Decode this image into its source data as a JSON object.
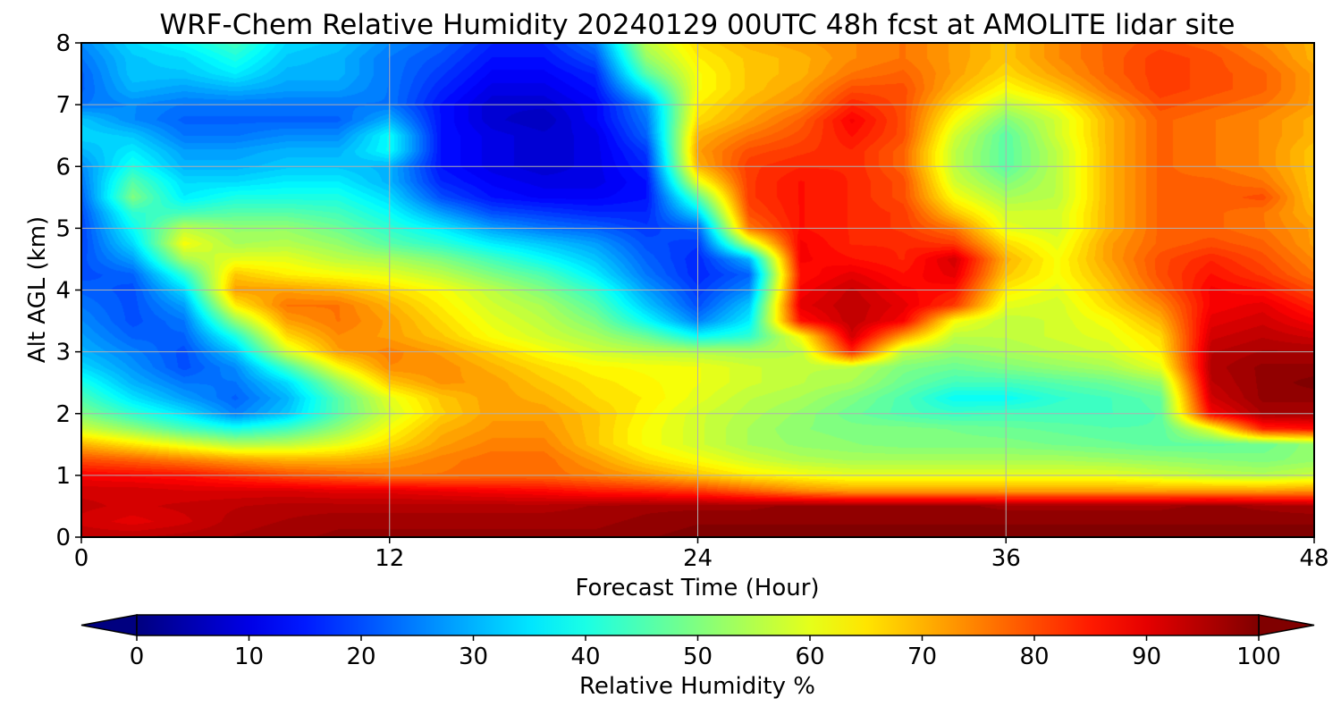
{
  "chart_data": {
    "type": "heatmap",
    "subtype": "filled-contour",
    "title": "WRF-Chem Relative Humidity 20240129 00UTC 48h fcst at AMOLITE lidar site",
    "xlabel": "Forecast Time (Hour)",
    "ylabel": "Alt AGL (km)",
    "xlim": [
      0,
      48
    ],
    "ylim": [
      0,
      8
    ],
    "xticks": [
      0,
      12,
      24,
      36,
      48
    ],
    "yticks": [
      0,
      1,
      2,
      3,
      4,
      5,
      6,
      7,
      8
    ],
    "grid": true,
    "colormap": "jet",
    "colorbar": {
      "label": "Relative Humidity %",
      "range": [
        0,
        100
      ],
      "ticks": [
        0,
        10,
        20,
        30,
        40,
        50,
        60,
        70,
        80,
        90,
        100
      ],
      "extend": "both",
      "orientation": "horizontal",
      "placement": "bottom"
    },
    "x": [
      0,
      2,
      4,
      6,
      8,
      10,
      12,
      14,
      16,
      18,
      20,
      22,
      24,
      26,
      28,
      30,
      32,
      34,
      36,
      38,
      40,
      42,
      44,
      46,
      48
    ],
    "y": [
      0,
      0.25,
      0.5,
      0.75,
      1,
      1.25,
      1.5,
      1.75,
      2,
      2.25,
      2.5,
      2.75,
      3,
      3.25,
      3.5,
      3.75,
      4,
      4.25,
      4.5,
      4.75,
      5,
      5.25,
      5.5,
      5.75,
      6,
      6.25,
      6.5,
      6.75,
      7,
      7.25,
      7.5,
      7.75,
      8
    ],
    "values": [
      [
        94,
        94,
        95,
        96,
        97,
        98,
        98,
        98,
        98,
        98,
        98,
        99,
        100,
        100,
        100,
        100,
        100,
        100,
        100,
        100,
        100,
        100,
        100,
        100,
        100
      ],
      [
        92,
        90,
        92,
        95,
        96,
        97,
        97,
        97,
        97,
        97,
        97,
        98,
        99,
        99,
        99,
        99,
        99,
        99,
        99,
        99,
        99,
        99,
        99,
        99,
        99
      ],
      [
        93,
        92,
        93,
        94,
        95,
        95,
        95,
        95,
        95,
        95,
        96,
        97,
        97,
        97,
        98,
        98,
        98,
        98,
        97,
        97,
        97,
        97,
        98,
        97,
        96
      ],
      [
        92,
        92,
        91,
        91,
        91,
        90,
        90,
        89,
        88,
        87,
        85,
        84,
        82,
        78,
        74,
        72,
        72,
        72,
        72,
        72,
        72,
        72,
        72,
        72,
        73
      ],
      [
        88,
        87,
        86,
        83,
        80,
        78,
        76,
        76,
        77,
        77,
        75,
        72,
        68,
        64,
        62,
        60,
        60,
        60,
        60,
        60,
        60,
        58,
        56,
        55,
        57
      ],
      [
        80,
        78,
        75,
        72,
        70,
        70,
        72,
        75,
        77,
        77,
        72,
        66,
        62,
        58,
        55,
        54,
        54,
        54,
        54,
        54,
        53,
        52,
        51,
        50,
        52
      ],
      [
        70,
        65,
        60,
        55,
        56,
        60,
        66,
        72,
        75,
        75,
        68,
        62,
        58,
        54,
        52,
        51,
        50,
        50,
        50,
        49,
        48,
        47,
        47,
        48,
        52
      ],
      [
        58,
        52,
        45,
        40,
        44,
        52,
        62,
        70,
        73,
        73,
        68,
        62,
        58,
        54,
        51,
        50,
        50,
        49,
        48,
        47,
        46,
        46,
        60,
        84,
        86
      ],
      [
        50,
        42,
        35,
        25,
        32,
        46,
        58,
        67,
        72,
        72,
        68,
        63,
        58,
        55,
        52,
        48,
        45,
        43,
        44,
        44,
        44,
        46,
        88,
        96,
        96
      ],
      [
        45,
        35,
        28,
        22,
        30,
        46,
        60,
        68,
        72,
        70,
        66,
        64,
        60,
        56,
        54,
        50,
        45,
        38,
        38,
        42,
        44,
        47,
        92,
        98,
        98
      ],
      [
        40,
        30,
        24,
        24,
        34,
        52,
        68,
        73,
        72,
        68,
        65,
        63,
        61,
        58,
        56,
        54,
        48,
        44,
        44,
        46,
        48,
        52,
        94,
        98,
        100
      ],
      [
        34,
        27,
        20,
        26,
        44,
        62,
        74,
        74,
        70,
        66,
        63,
        62,
        61,
        58,
        56,
        56,
        50,
        48,
        50,
        52,
        54,
        60,
        95,
        98,
        98
      ],
      [
        30,
        25,
        20,
        32,
        58,
        72,
        75,
        72,
        67,
        62,
        58,
        56,
        55,
        54,
        56,
        84,
        56,
        52,
        54,
        56,
        58,
        64,
        94,
        96,
        96
      ],
      [
        28,
        22,
        22,
        40,
        66,
        74,
        72,
        68,
        62,
        58,
        54,
        48,
        38,
        42,
        62,
        92,
        72,
        56,
        56,
        58,
        60,
        66,
        92,
        94,
        92
      ],
      [
        26,
        20,
        24,
        52,
        72,
        76,
        72,
        66,
        60,
        56,
        50,
        38,
        25,
        36,
        86,
        94,
        88,
        62,
        56,
        58,
        62,
        70,
        90,
        92,
        88
      ],
      [
        24,
        20,
        28,
        64,
        76,
        76,
        70,
        64,
        58,
        54,
        46,
        32,
        20,
        32,
        90,
        94,
        90,
        82,
        60,
        58,
        66,
        74,
        88,
        90,
        84
      ],
      [
        22,
        20,
        34,
        72,
        72,
        70,
        66,
        62,
        56,
        50,
        42,
        28,
        18,
        26,
        88,
        93,
        88,
        86,
        64,
        60,
        68,
        78,
        88,
        86,
        80
      ],
      [
        20,
        22,
        42,
        68,
        64,
        62,
        60,
        56,
        50,
        45,
        36,
        24,
        16,
        22,
        86,
        90,
        86,
        90,
        68,
        62,
        70,
        80,
        86,
        82,
        76
      ],
      [
        20,
        28,
        54,
        60,
        60,
        56,
        54,
        50,
        44,
        38,
        32,
        22,
        16,
        30,
        88,
        86,
        84,
        92,
        70,
        62,
        72,
        80,
        84,
        80,
        74
      ],
      [
        19,
        34,
        62,
        54,
        55,
        52,
        46,
        42,
        36,
        32,
        28,
        20,
        18,
        56,
        88,
        84,
        84,
        82,
        66,
        60,
        72,
        78,
        80,
        78,
        72
      ],
      [
        19,
        38,
        56,
        52,
        52,
        48,
        42,
        36,
        28,
        24,
        22,
        18,
        22,
        76,
        86,
        84,
        82,
        76,
        60,
        58,
        70,
        78,
        78,
        76,
        72
      ],
      [
        20,
        42,
        44,
        46,
        46,
        44,
        38,
        28,
        20,
        18,
        16,
        16,
        34,
        80,
        86,
        84,
        82,
        68,
        58,
        58,
        70,
        78,
        78,
        76,
        70
      ],
      [
        22,
        50,
        36,
        40,
        40,
        40,
        34,
        20,
        14,
        12,
        12,
        14,
        46,
        82,
        86,
        84,
        80,
        62,
        54,
        56,
        70,
        78,
        78,
        80,
        68
      ],
      [
        24,
        46,
        34,
        34,
        36,
        36,
        30,
        16,
        12,
        10,
        10,
        14,
        60,
        82,
        86,
        84,
        80,
        58,
        50,
        56,
        70,
        78,
        78,
        76,
        68
      ],
      [
        26,
        40,
        30,
        30,
        32,
        32,
        30,
        14,
        10,
        8,
        10,
        16,
        70,
        82,
        84,
        84,
        78,
        56,
        46,
        56,
        70,
        78,
        76,
        74,
        68
      ],
      [
        30,
        36,
        28,
        28,
        30,
        30,
        38,
        14,
        10,
        8,
        10,
        18,
        72,
        80,
        82,
        84,
        78,
        56,
        46,
        56,
        70,
        78,
        76,
        74,
        68
      ],
      [
        34,
        32,
        24,
        24,
        26,
        26,
        38,
        14,
        10,
        8,
        10,
        22,
        70,
        76,
        80,
        86,
        80,
        58,
        46,
        58,
        70,
        78,
        76,
        74,
        70
      ],
      [
        32,
        26,
        22,
        22,
        22,
        22,
        30,
        14,
        8,
        6,
        12,
        24,
        66,
        72,
        78,
        88,
        80,
        62,
        50,
        58,
        70,
        78,
        76,
        74,
        70
      ],
      [
        24,
        26,
        24,
        24,
        24,
        24,
        24,
        14,
        8,
        8,
        12,
        26,
        64,
        70,
        74,
        84,
        80,
        66,
        56,
        62,
        72,
        80,
        78,
        76,
        72
      ],
      [
        22,
        30,
        28,
        30,
        28,
        28,
        24,
        16,
        10,
        10,
        14,
        36,
        62,
        68,
        72,
        80,
        80,
        70,
        62,
        68,
        76,
        82,
        80,
        78,
        72
      ],
      [
        22,
        32,
        32,
        36,
        30,
        30,
        24,
        18,
        12,
        12,
        16,
        46,
        62,
        68,
        70,
        76,
        78,
        72,
        66,
        72,
        78,
        82,
        80,
        78,
        72
      ],
      [
        24,
        32,
        34,
        40,
        32,
        30,
        24,
        20,
        14,
        14,
        20,
        52,
        64,
        68,
        70,
        74,
        76,
        72,
        68,
        74,
        78,
        82,
        80,
        76,
        70
      ],
      [
        26,
        34,
        38,
        44,
        34,
        32,
        26,
        22,
        16,
        16,
        24,
        56,
        66,
        70,
        72,
        74,
        76,
        72,
        68,
        74,
        78,
        80,
        78,
        74,
        70
      ]
    ]
  }
}
